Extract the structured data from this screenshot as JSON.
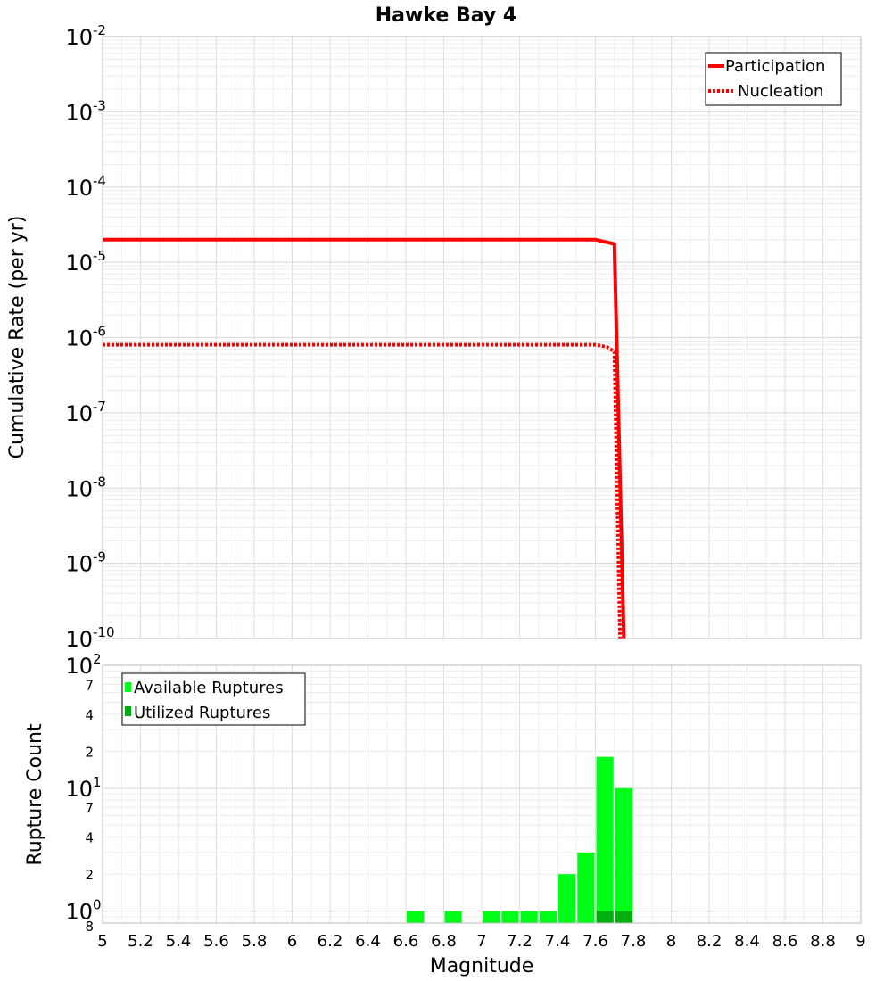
{
  "chart_data": [
    {
      "type": "line",
      "title": "Hawke Bay 4",
      "xlabel": "Magnitude",
      "ylabel": "Cumulative Rate (per yr)",
      "yscale": "log",
      "xlim": [
        5,
        9
      ],
      "ylim": [
        1e-10,
        0.01
      ],
      "x_ticks": [
        "5",
        "5.2",
        "5.4",
        "5.6",
        "5.8",
        "6",
        "6.2",
        "6.4",
        "6.6",
        "6.8",
        "7",
        "7.2",
        "7.4",
        "7.6",
        "7.8",
        "8",
        "8.2",
        "8.4",
        "8.6",
        "8.8",
        "9"
      ],
      "y_ticks": [
        {
          "value": 0.01,
          "base": "10",
          "exp": "-2"
        },
        {
          "value": 0.001,
          "base": "10",
          "exp": "-3"
        },
        {
          "value": 0.0001,
          "base": "10",
          "exp": "-4"
        },
        {
          "value": 1e-05,
          "base": "10",
          "exp": "-5"
        },
        {
          "value": 1e-06,
          "base": "10",
          "exp": "-6"
        },
        {
          "value": 1e-07,
          "base": "10",
          "exp": "-7"
        },
        {
          "value": 1e-08,
          "base": "10",
          "exp": "-8"
        },
        {
          "value": 1e-09,
          "base": "10",
          "exp": "-9"
        },
        {
          "value": 1e-10,
          "base": "10",
          "exp": "-10"
        }
      ],
      "legend_position": "top-right",
      "series": [
        {
          "name": "Participation",
          "style": "solid",
          "color": "#ff0000",
          "x": [
            5.0,
            7.6,
            7.7,
            7.75
          ],
          "y": [
            2e-05,
            2e-05,
            1.75e-05,
            1e-10
          ]
        },
        {
          "name": "Nucleation",
          "style": "dotted",
          "color": "#ff0000",
          "x": [
            5.0,
            7.6,
            7.66,
            7.7,
            7.73
          ],
          "y": [
            8e-07,
            8e-07,
            7.5e-07,
            6.5e-07,
            1e-10
          ]
        }
      ]
    },
    {
      "type": "bar",
      "xlabel": "Magnitude",
      "ylabel": "Rupture Count",
      "yscale": "log",
      "xlim": [
        5,
        9
      ],
      "ylim": [
        0.8,
        100
      ],
      "y_ticks": [
        {
          "value": 100,
          "base": "10",
          "exp": "2"
        },
        {
          "value": 10,
          "base": "10",
          "exp": "1"
        },
        {
          "value": 1,
          "base": "10",
          "exp": "0"
        }
      ],
      "y_minor_labels": [
        {
          "value": 70,
          "label": "7"
        },
        {
          "value": 40,
          "label": "4"
        },
        {
          "value": 20,
          "label": "2"
        },
        {
          "value": 7,
          "label": "7"
        },
        {
          "value": 4,
          "label": "4"
        },
        {
          "value": 2,
          "label": "2"
        },
        {
          "value": 0.8,
          "label": "8"
        }
      ],
      "legend_position": "top-left",
      "bin_width": 0.1,
      "series": [
        {
          "name": "Available Ruptures",
          "color": "#00ff18",
          "x": [
            6.65,
            6.85,
            7.05,
            7.15,
            7.25,
            7.35,
            7.45,
            7.55,
            7.65,
            7.75
          ],
          "values": [
            1,
            1,
            1,
            1,
            1,
            1,
            2,
            3,
            18,
            10
          ]
        },
        {
          "name": "Utilized Ruptures",
          "color": "#00b010",
          "x": [
            7.65,
            7.75
          ],
          "values": [
            1,
            1
          ]
        }
      ]
    }
  ]
}
